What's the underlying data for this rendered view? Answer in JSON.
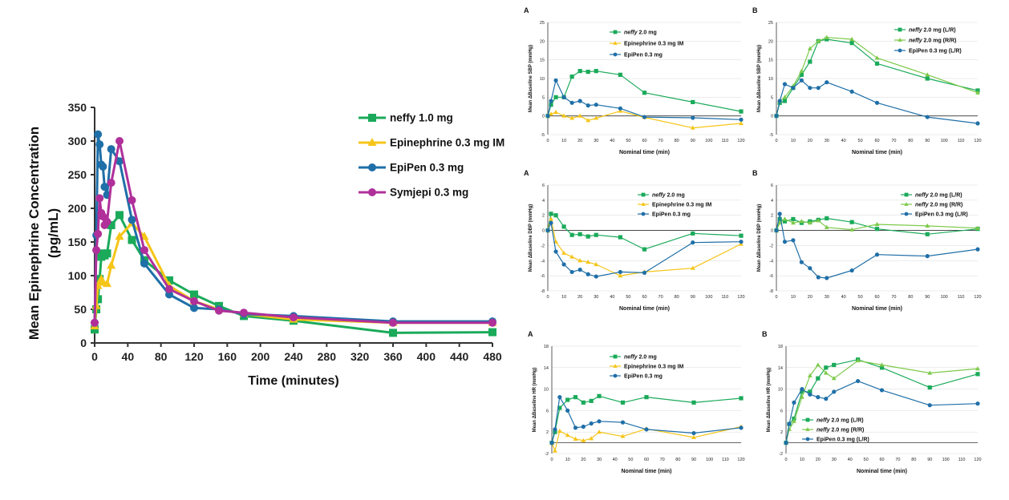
{
  "colors": {
    "neffy": "#1aaa5a",
    "neffy_rr": "#7dc94a",
    "epinephrine_im": "#f5c518",
    "epipen": "#1f6fa8",
    "symjepi": "#b0309a",
    "axis": "#333333",
    "grid": "#d9d9d9"
  },
  "chart_data": [
    {
      "id": "pk",
      "type": "line",
      "title": "",
      "xlabel": "Time (minutes)",
      "ylabel": "Mean Epinephrine Concentration (pg/mL)",
      "ylabel_lines": [
        "Mean Epinephrine Concentration",
        "(pg/mL)"
      ],
      "xlim": [
        0,
        480
      ],
      "ylim": [
        0,
        350
      ],
      "xticks": [
        0,
        40,
        80,
        120,
        160,
        200,
        240,
        280,
        320,
        360,
        400,
        440,
        480
      ],
      "yticks": [
        0,
        50,
        100,
        150,
        200,
        250,
        300,
        350
      ],
      "grid": false,
      "legend": "right",
      "series": [
        {
          "name": "neffy 1.0 mg",
          "color": "#1aaa5a",
          "marker": "square",
          "x": [
            0,
            2,
            4,
            6,
            8,
            10,
            12,
            15,
            20,
            30,
            45,
            60,
            90,
            120,
            150,
            180,
            240,
            360,
            480
          ],
          "y": [
            20,
            50,
            65,
            95,
            128,
            133,
            130,
            133,
            175,
            190,
            153,
            123,
            93,
            72,
            55,
            40,
            33,
            15,
            16
          ]
        },
        {
          "name": "Epinephrine 0.3 mg IM",
          "color": "#f5c518",
          "marker": "triangle",
          "x": [
            0,
            2,
            4,
            6,
            8,
            10,
            15,
            20,
            30,
            45,
            60,
            90,
            120,
            150,
            180,
            240,
            360,
            480
          ],
          "y": [
            25,
            55,
            85,
            90,
            95,
            90,
            88,
            115,
            158,
            178,
            158,
            85,
            62,
            50,
            43,
            35,
            30,
            30
          ]
        },
        {
          "name": "EpiPen 0.3 mg",
          "color": "#1f6fa8",
          "marker": "circle",
          "x": [
            0,
            2,
            4,
            6,
            8,
            10,
            12,
            15,
            20,
            30,
            45,
            60,
            90,
            120,
            150,
            180,
            240,
            360,
            480
          ],
          "y": [
            30,
            160,
            310,
            295,
            265,
            262,
            232,
            220,
            288,
            270,
            183,
            118,
            72,
            52,
            50,
            43,
            40,
            32,
            32
          ]
        },
        {
          "name": "Symjepi 0.3 mg",
          "color": "#b0309a",
          "marker": "circle",
          "x": [
            0,
            2,
            4,
            6,
            8,
            10,
            12,
            15,
            20,
            30,
            45,
            60,
            90,
            120,
            150,
            180,
            240,
            360,
            480
          ],
          "y": [
            30,
            138,
            162,
            215,
            193,
            188,
            175,
            180,
            238,
            300,
            212,
            138,
            80,
            62,
            48,
            45,
            38,
            30,
            30
          ]
        }
      ]
    },
    {
      "id": "sbpA",
      "type": "line",
      "panel_label": "A",
      "xlabel": "Nominal time (min)",
      "ylabel": "Mean ΔBaseline SBP (mmHg)",
      "xlim": [
        0,
        120
      ],
      "ylim": [
        -5,
        25
      ],
      "xticks": [
        0,
        10,
        20,
        30,
        40,
        50,
        60,
        70,
        80,
        90,
        100,
        110,
        120
      ],
      "yticks": [
        -5,
        0,
        5,
        10,
        15,
        20,
        25
      ],
      "legend": "top-right",
      "series": [
        {
          "name": "neffy 2.0 mg",
          "name_italic": "neffy",
          "name_rest": " 2.0 mg",
          "color": "#1aaa5a",
          "marker": "square",
          "x": [
            0,
            2,
            5,
            10,
            15,
            20,
            25,
            30,
            45,
            60,
            90,
            120
          ],
          "y": [
            0,
            3,
            5,
            5,
            10.5,
            12,
            11.8,
            12,
            11,
            6.2,
            3.7,
            1.2
          ]
        },
        {
          "name": "Epinephrine 0.3 mg IM",
          "color": "#f5c518",
          "marker": "triangle",
          "x": [
            0,
            2,
            5,
            10,
            15,
            20,
            25,
            30,
            45,
            60,
            90,
            120
          ],
          "y": [
            0,
            0.5,
            1,
            0,
            -0.6,
            0,
            -1.2,
            -0.6,
            1.3,
            -0.4,
            -3.2,
            -2
          ]
        },
        {
          "name": "EpiPen 0.3 mg",
          "color": "#1f6fa8",
          "marker": "circle",
          "x": [
            0,
            2,
            5,
            10,
            15,
            20,
            25,
            30,
            45,
            60,
            90,
            120
          ],
          "y": [
            0,
            4,
            9.5,
            5,
            3.5,
            4,
            2.8,
            3,
            2,
            -0.3,
            -0.5,
            -1
          ]
        }
      ]
    },
    {
      "id": "sbpB",
      "type": "line",
      "panel_label": "B",
      "xlabel": "Nominal time (min)",
      "ylabel": "Mean ΔBaseline SBP (mmHg)",
      "xlim": [
        0,
        120
      ],
      "ylim": [
        -5,
        25
      ],
      "xticks": [
        0,
        10,
        20,
        30,
        40,
        50,
        60,
        70,
        80,
        90,
        100,
        110,
        120
      ],
      "yticks": [
        -5,
        0,
        5,
        10,
        15,
        20,
        25
      ],
      "legend": "top-right",
      "series": [
        {
          "name": "neffy 2.0 mg (L/R)",
          "name_italic": "neffy",
          "name_rest": " 2.0 mg (L/R)",
          "color": "#1aaa5a",
          "marker": "square",
          "x": [
            0,
            2,
            5,
            10,
            15,
            20,
            25,
            30,
            45,
            60,
            90,
            120
          ],
          "y": [
            0,
            3.5,
            4,
            7.5,
            11,
            14.5,
            20,
            20.5,
            19.5,
            14,
            10,
            6.8
          ]
        },
        {
          "name": "neffy 2.0 mg (R/R)",
          "name_italic": "neffy",
          "name_rest": " 2.0 mg (R/R)",
          "color": "#7dc94a",
          "marker": "triangle",
          "x": [
            0,
            2,
            5,
            10,
            15,
            20,
            25,
            30,
            45,
            60,
            90,
            120
          ],
          "y": [
            0,
            4,
            5,
            8,
            12,
            18,
            20,
            21,
            20.5,
            15.5,
            11,
            6.2
          ]
        },
        {
          "name": "EpiPen 0.3 mg (L/R)",
          "color": "#1f6fa8",
          "marker": "circle",
          "x": [
            0,
            2,
            5,
            10,
            15,
            20,
            25,
            30,
            45,
            60,
            90,
            120
          ],
          "y": [
            0,
            4,
            8.5,
            7.5,
            9.5,
            7.5,
            7.5,
            9,
            6.5,
            3.5,
            -0.3,
            -2
          ]
        }
      ]
    },
    {
      "id": "dbpA",
      "type": "line",
      "panel_label": "A",
      "xlabel": "Nominal time (min)",
      "ylabel": "Mean ΔBaseline DBP (mmHg)",
      "xlim": [
        0,
        120
      ],
      "ylim": [
        -8,
        6
      ],
      "xticks": [
        0,
        10,
        20,
        30,
        40,
        50,
        60,
        70,
        80,
        90,
        100,
        110,
        120
      ],
      "yticks": [
        -8,
        -6,
        -4,
        -2,
        0,
        2,
        4,
        6
      ],
      "legend": "top-right",
      "series": [
        {
          "name": "neffy 2.0 mg",
          "name_italic": "neffy",
          "name_rest": " 2.0 mg",
          "color": "#1aaa5a",
          "marker": "square",
          "x": [
            0,
            2,
            5,
            10,
            15,
            20,
            25,
            30,
            45,
            60,
            90,
            120
          ],
          "y": [
            0,
            2.2,
            2,
            0.5,
            -0.6,
            -0.5,
            -0.8,
            -0.6,
            -0.9,
            -2.5,
            -0.4,
            -0.7
          ]
        },
        {
          "name": "Epinephrine 0.3 mg IM",
          "color": "#f5c518",
          "marker": "triangle",
          "x": [
            0,
            2,
            5,
            10,
            15,
            20,
            25,
            30,
            45,
            60,
            90,
            120
          ],
          "y": [
            0,
            1.5,
            -1.5,
            -3,
            -3.5,
            -4,
            -4.2,
            -4.5,
            -6,
            -5.5,
            -5,
            -1.8
          ]
        },
        {
          "name": "EpiPen 0.3 mg",
          "color": "#1f6fa8",
          "marker": "circle",
          "x": [
            0,
            2,
            5,
            10,
            15,
            20,
            25,
            30,
            45,
            60,
            90,
            120
          ],
          "y": [
            0,
            1,
            -2.8,
            -4.5,
            -5.5,
            -5.2,
            -5.8,
            -6.1,
            -5.5,
            -5.6,
            -1.6,
            -1.5
          ]
        }
      ]
    },
    {
      "id": "dbpB",
      "type": "line",
      "panel_label": "B",
      "xlabel": "Nominal time (min)",
      "ylabel": "Mean ΔBaseline DBP (mmHg)",
      "xlim": [
        0,
        120
      ],
      "ylim": [
        -8,
        6
      ],
      "xticks": [
        0,
        10,
        20,
        30,
        40,
        50,
        60,
        70,
        80,
        90,
        100,
        110,
        120
      ],
      "yticks": [
        -8,
        -6,
        -4,
        -2,
        0,
        2,
        4,
        6
      ],
      "legend": "top-right",
      "series": [
        {
          "name": "neffy 2.0 mg (L/R)",
          "name_italic": "neffy",
          "name_rest": " 2.0 mg (L/R)",
          "color": "#1aaa5a",
          "marker": "square",
          "x": [
            0,
            2,
            5,
            10,
            15,
            20,
            25,
            30,
            45,
            60,
            90,
            120
          ],
          "y": [
            0,
            1.5,
            1.2,
            1.5,
            1,
            1.2,
            1.4,
            1.6,
            1.1,
            0.2,
            -0.5,
            0.2
          ]
        },
        {
          "name": "neffy 2.0 mg (R/R)",
          "name_italic": "neffy",
          "name_rest": " 2.0 mg (R/R)",
          "color": "#7dc94a",
          "marker": "triangle",
          "x": [
            0,
            2,
            5,
            10,
            15,
            20,
            25,
            30,
            45,
            60,
            90,
            120
          ],
          "y": [
            0,
            1,
            1.5,
            1,
            1.2,
            1,
            1.3,
            0.4,
            0.1,
            0.8,
            0.6,
            0.3
          ]
        },
        {
          "name": "EpiPen 0.3 mg (L/R)",
          "color": "#1f6fa8",
          "marker": "circle",
          "x": [
            0,
            2,
            5,
            10,
            15,
            20,
            25,
            30,
            45,
            60,
            90,
            120
          ],
          "y": [
            0,
            2.2,
            -1.5,
            -1.3,
            -4.2,
            -5,
            -6.2,
            -6.3,
            -5.3,
            -3.2,
            -3.4,
            -2.5
          ]
        }
      ]
    },
    {
      "id": "hrA",
      "type": "line",
      "panel_label": "A",
      "xlabel": "Nominal time (min)",
      "ylabel": "Mean ΔBaseline HR (mmHg)",
      "xlim": [
        0,
        120
      ],
      "ylim": [
        -2,
        18
      ],
      "xticks": [
        0,
        10,
        20,
        30,
        40,
        50,
        60,
        70,
        80,
        90,
        100,
        110,
        120
      ],
      "yticks": [
        -2,
        2,
        6,
        10,
        14,
        18
      ],
      "legend": "top-right",
      "series": [
        {
          "name": "neffy 2.0 mg",
          "name_italic": "neffy",
          "name_rest": " 2.0 mg",
          "color": "#1aaa5a",
          "marker": "square",
          "x": [
            0,
            2,
            5,
            10,
            15,
            20,
            25,
            30,
            45,
            60,
            90,
            120
          ],
          "y": [
            0,
            2,
            6.5,
            8,
            8.5,
            7.5,
            7.8,
            8.7,
            7.5,
            8.5,
            7.5,
            8.3
          ]
        },
        {
          "name": "Epinephrine 0.3 mg IM",
          "color": "#f5c518",
          "marker": "triangle",
          "x": [
            0,
            2,
            5,
            10,
            15,
            20,
            25,
            30,
            45,
            60,
            90,
            120
          ],
          "y": [
            0,
            -1.5,
            2.2,
            1.4,
            0.7,
            0.4,
            0.8,
            2,
            1.2,
            2.6,
            1,
            3
          ]
        },
        {
          "name": "EpiPen 0.3 mg",
          "color": "#1f6fa8",
          "marker": "circle",
          "x": [
            0,
            2,
            5,
            10,
            15,
            20,
            25,
            30,
            45,
            60,
            90,
            120
          ],
          "y": [
            0,
            2.5,
            8.5,
            6,
            2.8,
            3,
            3.6,
            4,
            3.8,
            2.5,
            1.8,
            2.8
          ]
        }
      ]
    },
    {
      "id": "hrB",
      "type": "line",
      "panel_label": "B",
      "xlabel": "Nominal time (min)",
      "ylabel": "Mean ΔBaseline HR (mmHg)",
      "xlim": [
        0,
        120
      ],
      "ylim": [
        -2,
        18
      ],
      "xticks": [
        0,
        10,
        20,
        30,
        40,
        50,
        60,
        70,
        80,
        90,
        100,
        110,
        120
      ],
      "yticks": [
        -2,
        2,
        6,
        10,
        14,
        18
      ],
      "legend": "bottom-center",
      "series": [
        {
          "name": "neffy 2.0 mg (L/R)",
          "name_italic": "neffy",
          "name_rest": " 2.0 mg (L/R)",
          "color": "#1aaa5a",
          "marker": "square",
          "x": [
            0,
            2,
            5,
            10,
            15,
            20,
            25,
            30,
            45,
            60,
            90,
            120
          ],
          "y": [
            0,
            3.5,
            4.5,
            9.5,
            9.5,
            12,
            14,
            14.5,
            15.5,
            14,
            10.3,
            12.8
          ]
        },
        {
          "name": "neffy 2.0 mg (R/R)",
          "name_italic": "neffy",
          "name_rest": " 2.0 mg (R/R)",
          "color": "#7dc94a",
          "marker": "triangle",
          "x": [
            0,
            2,
            5,
            10,
            15,
            20,
            25,
            30,
            45,
            60,
            90,
            120
          ],
          "y": [
            0,
            2.5,
            4,
            8.5,
            12.5,
            14.5,
            13,
            12,
            15.3,
            14.5,
            13,
            13.8
          ]
        },
        {
          "name": "EpiPen 0.3 mg (L/R)",
          "color": "#1f6fa8",
          "marker": "circle",
          "x": [
            0,
            2,
            5,
            10,
            15,
            20,
            25,
            30,
            45,
            60,
            90,
            120
          ],
          "y": [
            0,
            3.5,
            7.5,
            10,
            9,
            8.5,
            8.2,
            9.5,
            11.5,
            9.8,
            7,
            7.3
          ]
        }
      ]
    }
  ]
}
